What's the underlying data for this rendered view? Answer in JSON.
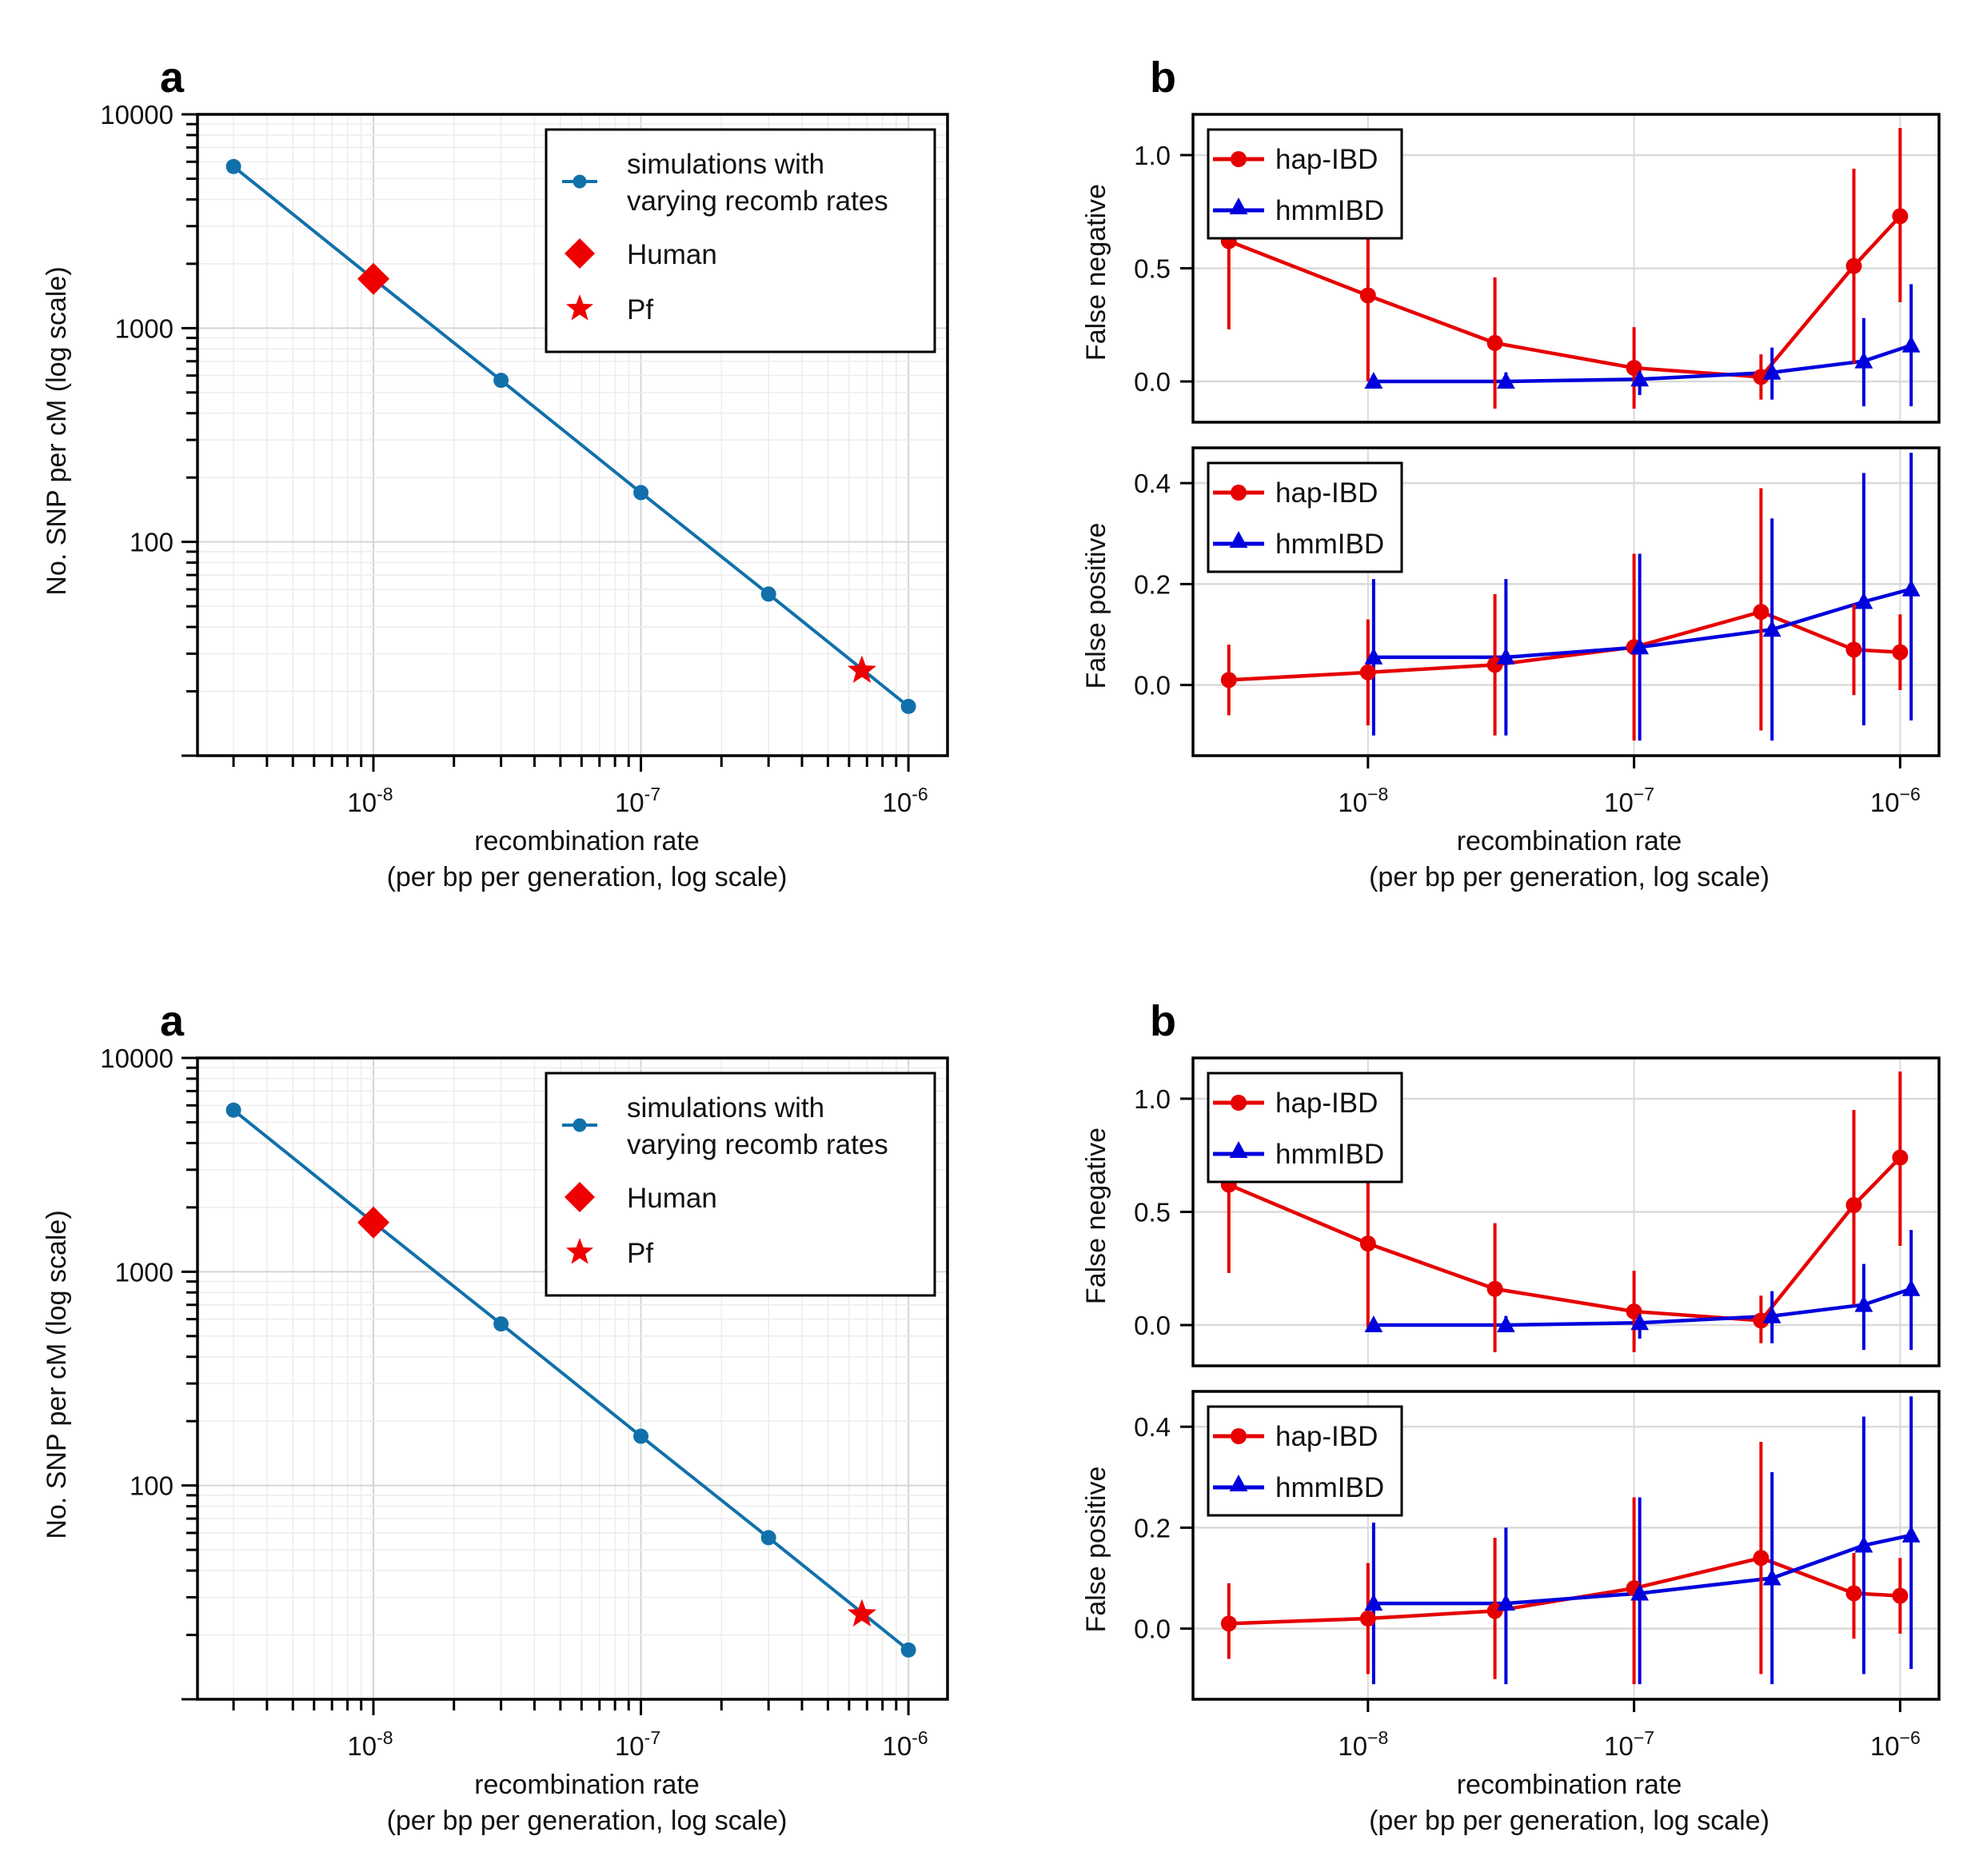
{
  "figure": {
    "description": "Two identical copies of a two-panel figure (a, b) stacked vertically"
  },
  "chart_data": [
    {
      "id": "top-a",
      "panel_label": "a",
      "type": "line",
      "title": "",
      "xlabel_line1": "recombination rate",
      "xlabel_line2": "(per bp per generation, log scale)",
      "ylabel": "No. SNP per cM (log scale)",
      "xscale": "log",
      "yscale": "log",
      "xlim": [
        2.2e-09,
        1.4e-06
      ],
      "ylim": [
        10,
        10000
      ],
      "x_ticks": [
        {
          "value": 1e-08,
          "base": "10",
          "exp": "-8"
        },
        {
          "value": 1e-07,
          "base": "10",
          "exp": "-7"
        },
        {
          "value": 1e-06,
          "base": "10",
          "exp": "-6"
        }
      ],
      "y_ticks": [
        {
          "value": 10000,
          "label": "10000"
        },
        {
          "value": 1000,
          "label": "1000"
        },
        {
          "value": 100,
          "label": "100"
        }
      ],
      "grid": true,
      "legend_position": "top-right",
      "series": [
        {
          "name": "simulations with varying recomb rates",
          "name_line1": "simulations with",
          "name_line2": "varying recomb rates",
          "color": "#1170aa",
          "marker": "circle",
          "x": [
            3e-09,
            1e-08,
            3e-08,
            1e-07,
            3e-07,
            1e-06
          ],
          "y": [
            5700,
            1700,
            570,
            170,
            57,
            17
          ]
        }
      ],
      "points": [
        {
          "name": "Human",
          "marker": "diamond",
          "color": "#ee0000",
          "x": 1e-08,
          "y": 1700
        },
        {
          "name": "Pf",
          "marker": "star",
          "color": "#ee0000",
          "x": 6.7e-07,
          "y": 25
        }
      ]
    },
    {
      "id": "top-b",
      "panel_label": "b",
      "type": "line",
      "xlabel_line1": "recombination rate",
      "xlabel_line2": "(per bp per generation, log scale)",
      "xscale": "log",
      "xlim": [
        2.2e-09,
        1.4e-06
      ],
      "x_ticks": [
        {
          "value": 1e-08,
          "base": "10",
          "exp": "−8"
        },
        {
          "value": 1e-07,
          "base": "10",
          "exp": "−7"
        },
        {
          "value": 1e-06,
          "base": "10",
          "exp": "−6"
        }
      ],
      "grid": true,
      "subplots": [
        {
          "ylabel": "False negative",
          "ylim": [
            -0.18,
            1.18
          ],
          "y_ticks": [
            {
              "value": 1.0,
              "label": "1.0"
            },
            {
              "value": 0.5,
              "label": "0.5"
            },
            {
              "value": 0.0,
              "label": "0.0"
            }
          ],
          "legend_position": "top-left",
          "series": [
            {
              "name": "hap-IBD",
              "color": "#e60000",
              "marker": "circle",
              "x": [
                3e-09,
                1e-08,
                3e-08,
                1e-07,
                3e-07,
                6.7e-07,
                1e-06
              ],
              "y": [
                0.62,
                0.38,
                0.17,
                0.06,
                0.02,
                0.51,
                0.73
              ],
              "err_low": [
                0.23,
                0.0,
                -0.12,
                -0.12,
                -0.08,
                0.08,
                0.35
              ],
              "err_high": [
                1.0,
                0.75,
                0.46,
                0.24,
                0.12,
                0.94,
                1.12
              ]
            },
            {
              "name": "hmmIBD",
              "color": "#0000dd",
              "marker": "triangle",
              "x": [
                1.05e-08,
                3.3e-08,
                1.05e-07,
                3.3e-07,
                7.3e-07,
                1.1e-06
              ],
              "y": [
                0.0,
                0.0,
                0.01,
                0.04,
                0.09,
                0.16
              ],
              "err_low": [
                0.0,
                -0.02,
                -0.06,
                -0.08,
                -0.11,
                -0.11
              ],
              "err_high": [
                0.0,
                0.04,
                0.07,
                0.15,
                0.28,
                0.43
              ]
            }
          ]
        },
        {
          "ylabel": "False positive",
          "ylim": [
            -0.14,
            0.47
          ],
          "y_ticks": [
            {
              "value": 0.4,
              "label": "0.4"
            },
            {
              "value": 0.2,
              "label": "0.2"
            },
            {
              "value": 0.0,
              "label": "0.0"
            }
          ],
          "legend_position": "top-left",
          "series": [
            {
              "name": "hap-IBD",
              "color": "#e60000",
              "marker": "circle",
              "x": [
                3e-09,
                1e-08,
                3e-08,
                1e-07,
                3e-07,
                6.7e-07,
                1e-06
              ],
              "y": [
                0.01,
                0.025,
                0.04,
                0.075,
                0.145,
                0.07,
                0.065
              ],
              "err_low": [
                -0.06,
                -0.08,
                -0.1,
                -0.11,
                -0.09,
                -0.02,
                -0.01
              ],
              "err_high": [
                0.08,
                0.13,
                0.18,
                0.26,
                0.39,
                0.16,
                0.14
              ]
            },
            {
              "name": "hmmIBD",
              "color": "#0000dd",
              "marker": "triangle",
              "x": [
                1.05e-08,
                3.3e-08,
                1.05e-07,
                3.3e-07,
                7.3e-07,
                1.1e-06
              ],
              "y": [
                0.055,
                0.055,
                0.075,
                0.11,
                0.165,
                0.19
              ],
              "err_low": [
                -0.1,
                -0.1,
                -0.11,
                -0.11,
                -0.08,
                -0.07
              ],
              "err_high": [
                0.21,
                0.21,
                0.26,
                0.33,
                0.42,
                0.46
              ]
            }
          ]
        }
      ]
    },
    {
      "id": "bottom-a",
      "panel_label": "a",
      "type": "line",
      "xlabel_line1": "recombination rate",
      "xlabel_line2": "(per bp per generation, log scale)",
      "ylabel": "No. SNP per cM (log scale)",
      "xscale": "log",
      "yscale": "log",
      "xlim": [
        2.2e-09,
        1.4e-06
      ],
      "ylim": [
        10,
        10000
      ],
      "x_ticks": [
        {
          "value": 1e-08,
          "base": "10",
          "exp": "-8"
        },
        {
          "value": 1e-07,
          "base": "10",
          "exp": "-7"
        },
        {
          "value": 1e-06,
          "base": "10",
          "exp": "-6"
        }
      ],
      "y_ticks": [
        {
          "value": 10000,
          "label": "10000"
        },
        {
          "value": 1000,
          "label": "1000"
        },
        {
          "value": 100,
          "label": "100"
        }
      ],
      "grid": true,
      "legend_position": "top-right",
      "series": [
        {
          "name": "simulations with varying recomb rates",
          "name_line1": "simulations with",
          "name_line2": "varying recomb rates",
          "color": "#1170aa",
          "marker": "circle",
          "x": [
            3e-09,
            1e-08,
            3e-08,
            1e-07,
            3e-07,
            1e-06
          ],
          "y": [
            5700,
            1700,
            570,
            170,
            57,
            17
          ]
        }
      ],
      "points": [
        {
          "name": "Human",
          "marker": "diamond",
          "color": "#ee0000",
          "x": 1e-08,
          "y": 1700
        },
        {
          "name": "Pf",
          "marker": "star",
          "color": "#ee0000",
          "x": 6.7e-07,
          "y": 25
        }
      ]
    },
    {
      "id": "bottom-b",
      "panel_label": "b",
      "type": "line",
      "xlabel_line1": "recombination rate",
      "xlabel_line2": "(per bp per generation, log scale)",
      "xscale": "log",
      "xlim": [
        2.2e-09,
        1.4e-06
      ],
      "x_ticks": [
        {
          "value": 1e-08,
          "base": "10",
          "exp": "−8"
        },
        {
          "value": 1e-07,
          "base": "10",
          "exp": "−7"
        },
        {
          "value": 1e-06,
          "base": "10",
          "exp": "−6"
        }
      ],
      "grid": true,
      "subplots": [
        {
          "ylabel": "False negative",
          "ylim": [
            -0.18,
            1.18
          ],
          "y_ticks": [
            {
              "value": 1.0,
              "label": "1.0"
            },
            {
              "value": 0.5,
              "label": "0.5"
            },
            {
              "value": 0.0,
              "label": "0.0"
            }
          ],
          "legend_position": "top-left",
          "series": [
            {
              "name": "hap-IBD",
              "color": "#e60000",
              "marker": "circle",
              "x": [
                3e-09,
                1e-08,
                3e-08,
                1e-07,
                3e-07,
                6.7e-07,
                1e-06
              ],
              "y": [
                0.62,
                0.36,
                0.16,
                0.06,
                0.02,
                0.53,
                0.74
              ],
              "err_low": [
                0.23,
                -0.01,
                -0.12,
                -0.12,
                -0.08,
                0.09,
                0.35
              ],
              "err_high": [
                1.0,
                0.73,
                0.45,
                0.24,
                0.13,
                0.95,
                1.12
              ]
            },
            {
              "name": "hmmIBD",
              "color": "#0000dd",
              "marker": "triangle",
              "x": [
                1.05e-08,
                3.3e-08,
                1.05e-07,
                3.3e-07,
                7.3e-07,
                1.1e-06
              ],
              "y": [
                0.0,
                0.0,
                0.01,
                0.04,
                0.09,
                0.16
              ],
              "err_low": [
                0.0,
                -0.02,
                -0.06,
                -0.08,
                -0.11,
                -0.11
              ],
              "err_high": [
                0.0,
                0.04,
                0.07,
                0.15,
                0.27,
                0.42
              ]
            }
          ]
        },
        {
          "ylabel": "False positive",
          "ylim": [
            -0.14,
            0.47
          ],
          "y_ticks": [
            {
              "value": 0.4,
              "label": "0.4"
            },
            {
              "value": 0.2,
              "label": "0.2"
            },
            {
              "value": 0.0,
              "label": "0.0"
            }
          ],
          "legend_position": "top-left",
          "series": [
            {
              "name": "hap-IBD",
              "color": "#e60000",
              "marker": "circle",
              "x": [
                3e-09,
                1e-08,
                3e-08,
                1e-07,
                3e-07,
                6.7e-07,
                1e-06
              ],
              "y": [
                0.01,
                0.02,
                0.035,
                0.08,
                0.14,
                0.07,
                0.065
              ],
              "err_low": [
                -0.06,
                -0.09,
                -0.1,
                -0.11,
                -0.09,
                -0.02,
                -0.01
              ],
              "err_high": [
                0.09,
                0.13,
                0.18,
                0.26,
                0.37,
                0.15,
                0.14
              ]
            },
            {
              "name": "hmmIBD",
              "color": "#0000dd",
              "marker": "triangle",
              "x": [
                1.05e-08,
                3.3e-08,
                1.05e-07,
                3.3e-07,
                7.3e-07,
                1.1e-06
              ],
              "y": [
                0.05,
                0.05,
                0.07,
                0.1,
                0.165,
                0.185
              ],
              "err_low": [
                -0.11,
                -0.11,
                -0.11,
                -0.11,
                -0.09,
                -0.08
              ],
              "err_high": [
                0.21,
                0.2,
                0.26,
                0.31,
                0.42,
                0.46
              ]
            }
          ]
        }
      ]
    }
  ]
}
